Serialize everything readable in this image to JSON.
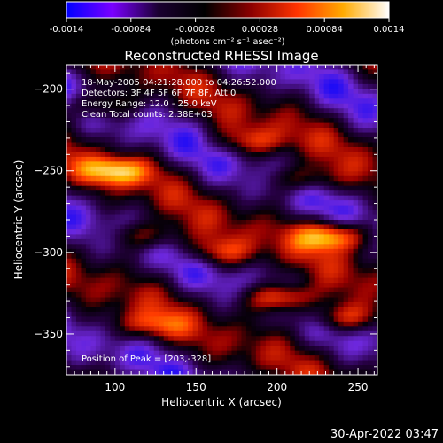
{
  "chart_data": {
    "type": "heatmap",
    "title": "Reconstructed RHESSI Image",
    "xlabel": "Heliocentric X (arcsec)",
    "ylabel": "Heliocentric Y (arcsec)",
    "x_ticks": [
      100,
      150,
      200,
      250
    ],
    "y_ticks": [
      -200,
      -250,
      -300,
      -350
    ],
    "xlim": [
      70,
      262
    ],
    "ylim": [
      -375,
      -185
    ],
    "colorbar": {
      "unit_label": "(photons cm⁻² s⁻¹ asec⁻²)",
      "ticks": [
        "-0.0014",
        "-0.00084",
        "-0.00028",
        "0.00028",
        "0.00084",
        "0.0014"
      ],
      "range": [
        -0.0014,
        0.0014
      ],
      "colormap": [
        "#0000ff",
        "#7a00ff",
        "#1a0030",
        "#000000",
        "#8b0000",
        "#ff3300",
        "#ffaa00",
        "#ffffff"
      ]
    },
    "annotations": [
      "18-May-2005 04:21:28.000 to 04:26:52.000",
      "Detectors: 3F 4F 5F 6F 7F 8F, Att 0",
      "Energy Range: 12.0 - 25.0 keV",
      "Clean    Total counts: 2.38E+03"
    ],
    "peak_text": "Position of Peak = [203,-328]",
    "peak": [
      203,
      -328
    ],
    "bright_sources": [
      {
        "x": 100,
        "y": -250,
        "level": 0.8
      },
      {
        "x": 215,
        "y": -255,
        "level": 0.55
      },
      {
        "x": 235,
        "y": -290,
        "level": 0.95
      },
      {
        "x": 120,
        "y": -290,
        "level": 0.6
      },
      {
        "x": 165,
        "y": -300,
        "level": 0.55
      },
      {
        "x": 203,
        "y": -328,
        "level": 1.0
      },
      {
        "x": 240,
        "y": -340,
        "level": 0.7
      },
      {
        "x": 120,
        "y": -345,
        "level": 0.5
      },
      {
        "x": 185,
        "y": -232,
        "level": 0.45
      },
      {
        "x": 90,
        "y": -210,
        "level": 0.55
      }
    ]
  },
  "footer": {
    "timestamp": "30-Apr-2022 03:47"
  }
}
